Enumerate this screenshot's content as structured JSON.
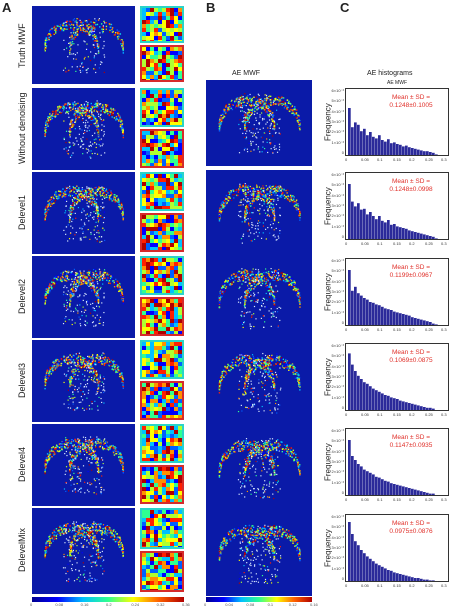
{
  "panels": {
    "a": {
      "letter": "A",
      "rows": [
        "Truth MWF",
        "Without denoising",
        "Delevel1",
        "Delevel2",
        "Delevel3",
        "Delevel4",
        "DelevelMix"
      ],
      "colorbar_ticks": [
        "0",
        "0.08",
        "0.16",
        "0.2",
        "0.24",
        "0.32",
        "0.36"
      ]
    },
    "b": {
      "letter": "B",
      "title": "AE MWF",
      "colorbar_ticks": [
        "0",
        "0.04",
        "0.08",
        "0.1",
        "0.12",
        "0.16"
      ]
    },
    "c": {
      "letter": "C",
      "title": "AE histograms",
      "subtitle": "AE MWF",
      "ylabel": "Frequency",
      "xticks": [
        "0",
        "0.05",
        "0.1",
        "0.15",
        "0.2",
        "0.25",
        "0.3"
      ],
      "stat_label": "Mean ± SD =",
      "stats": [
        "0.1248±0.1005",
        "0.1248±0.0998",
        "0.1199±0.0967",
        "0.1069±0.0875",
        "0.1147±0.0935",
        "0.0975±0.0876"
      ],
      "yticks_top": [
        "6×10⁻³",
        "5×10⁻³",
        "4×10⁻³",
        "3×10⁻³",
        "2×10⁻³",
        "1×10⁻³",
        "0"
      ]
    }
  },
  "colors": {
    "brain_bg": "#0a1aa8",
    "bar_fill": "#2b2a9a",
    "stat_text": "#e0302a",
    "zoom_cyan": "#2ad4c8",
    "zoom_red": "#d62b2b"
  },
  "chart_data": {
    "type": "bar",
    "x_range": [
      0,
      0.3
    ],
    "xlabel": "",
    "ylabel": "Frequency",
    "title": "AE MWF",
    "series": [
      {
        "values": [
          6.0,
          3.6,
          4.2,
          3.9,
          3.1,
          3.4,
          2.6,
          3.0,
          2.4,
          2.2,
          2.6,
          2.0,
          1.8,
          2.1,
          1.6,
          1.7,
          1.5,
          1.4,
          1.2,
          1.3,
          1.1,
          1.0,
          0.9,
          0.8,
          0.7,
          0.6,
          0.6,
          0.5,
          0.4,
          0.2
        ]
      },
      {
        "values": [
          7.0,
          4.8,
          4.2,
          4.6,
          3.8,
          3.9,
          3.2,
          3.5,
          3.0,
          2.6,
          3.0,
          2.4,
          2.2,
          2.5,
          1.9,
          2.0,
          1.7,
          1.6,
          1.5,
          1.4,
          1.2,
          1.1,
          1.0,
          0.9,
          0.8,
          0.7,
          0.6,
          0.5,
          0.4,
          0.2
        ]
      },
      {
        "values": [
          7.0,
          4.4,
          4.9,
          4.1,
          3.8,
          3.5,
          3.3,
          3.0,
          2.9,
          2.7,
          2.6,
          2.4,
          2.2,
          2.1,
          2.0,
          1.8,
          1.7,
          1.6,
          1.5,
          1.4,
          1.3,
          1.1,
          1.0,
          0.9,
          0.8,
          0.7,
          0.6,
          0.5,
          0.3,
          0.2
        ]
      },
      {
        "values": [
          7.2,
          5.8,
          5.0,
          4.4,
          4.0,
          3.6,
          3.4,
          3.1,
          2.8,
          2.6,
          2.4,
          2.2,
          2.0,
          1.9,
          1.7,
          1.6,
          1.5,
          1.3,
          1.2,
          1.1,
          1.0,
          0.9,
          0.8,
          0.7,
          0.6,
          0.5,
          0.4,
          0.4,
          0.3,
          0.1
        ]
      },
      {
        "values": [
          7.0,
          5.0,
          4.5,
          4.0,
          3.7,
          3.3,
          3.1,
          2.9,
          2.7,
          2.4,
          2.3,
          2.1,
          1.9,
          1.8,
          1.6,
          1.5,
          1.4,
          1.3,
          1.2,
          1.1,
          1.0,
          0.9,
          0.8,
          0.7,
          0.6,
          0.5,
          0.4,
          0.3,
          0.3,
          0.1
        ]
      },
      {
        "values": [
          7.5,
          6.0,
          5.1,
          4.6,
          4.0,
          3.6,
          3.2,
          2.9,
          2.6,
          2.3,
          2.1,
          1.9,
          1.7,
          1.5,
          1.4,
          1.2,
          1.1,
          1.0,
          0.9,
          0.8,
          0.7,
          0.6,
          0.5,
          0.5,
          0.4,
          0.3,
          0.3,
          0.2,
          0.2,
          0.1
        ]
      }
    ]
  }
}
